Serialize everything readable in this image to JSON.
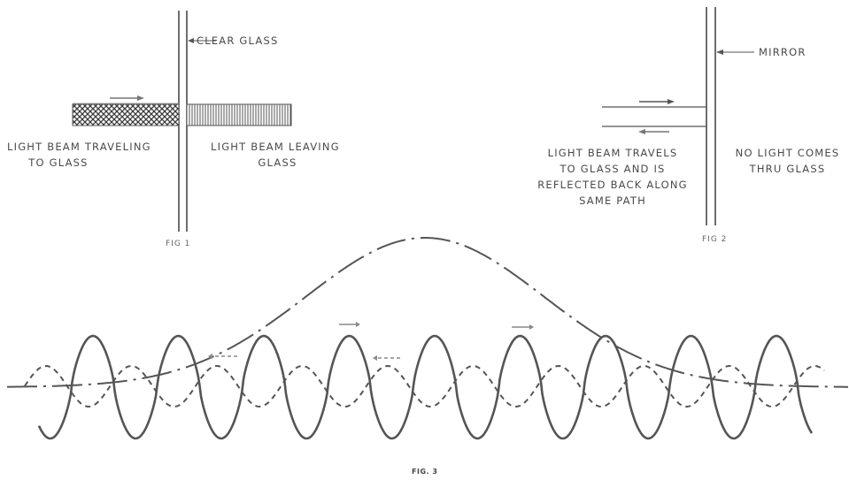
{
  "fig1": {
    "glass_label": "CLEAR GLASS",
    "incoming_label": "LIGHT BEAM TRAVELING\n     TO GLASS",
    "outgoing_label": "LIGHT BEAM LEAVING\n           GLASS",
    "caption": "FIG 1"
  },
  "fig2": {
    "mirror_label": "MIRROR",
    "reflected_label": "LIGHT BEAM TRAVELS\nTO GLASS AND IS\nREFLECTED BACK ALONG\nSAME PATH",
    "blocked_label": "NO LIGHT COMES\nTHRU GLASS",
    "caption": "FIG 2"
  },
  "fig3": {
    "caption": "FIG. 3"
  },
  "colors": {
    "ink": "#4a4a4a",
    "wave": "#555555",
    "light": "#888888"
  }
}
